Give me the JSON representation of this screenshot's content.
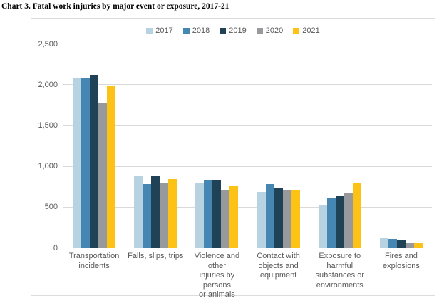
{
  "chart_data": {
    "type": "bar",
    "title": "Chart 3. Fatal work injuries by major event or exposure, 2017-21",
    "categories": [
      "Transportation\nincidents",
      "Falls, slips, trips",
      "Violence and other\ninjuries by persons\nor animals",
      "Contact with\nobjects and\nequipment",
      "Exposure to\nharmful\nsubstances or\nenvironments",
      "Fires and\nexplosions"
    ],
    "series": [
      {
        "name": "2017",
        "color": "#b7d3e1",
        "values": [
          2077,
          887,
          807,
          695,
          531,
          123
        ]
      },
      {
        "name": "2018",
        "color": "#4587b2",
        "values": [
          2080,
          791,
          828,
          786,
          621,
          115
        ]
      },
      {
        "name": "2019",
        "color": "#1f4257",
        "values": [
          2122,
          880,
          841,
          732,
          642,
          99
        ]
      },
      {
        "name": "2020",
        "color": "#97999c",
        "values": [
          1778,
          805,
          705,
          716,
          672,
          74
        ]
      },
      {
        "name": "2021",
        "color": "#fcc216",
        "values": [
          1982,
          850,
          761,
          705,
          798,
          72
        ]
      }
    ],
    "xlabel": "",
    "ylabel": "",
    "ylim": [
      0,
      2500
    ],
    "yticks": [
      {
        "value": 0,
        "label": "0"
      },
      {
        "value": 500,
        "label": "500"
      },
      {
        "value": 1000,
        "label": "1,000"
      },
      {
        "value": 1500,
        "label": "1,500"
      },
      {
        "value": 2000,
        "label": "2,000"
      },
      {
        "value": 2500,
        "label": "2,500"
      }
    ],
    "grid": "horizontal",
    "legend_position": "top"
  }
}
